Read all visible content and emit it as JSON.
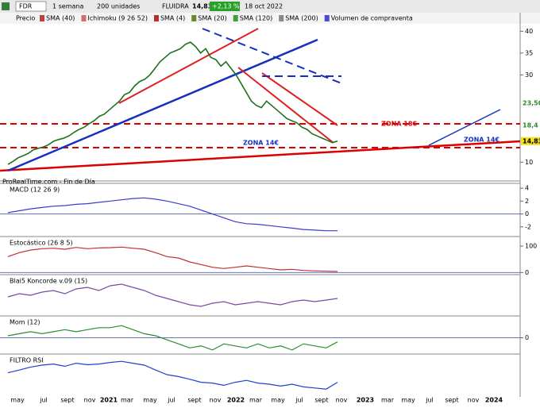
{
  "toolbar": {
    "symbol": "FDR",
    "period": "1 semana",
    "units": "200 unidades",
    "name": "FLUIDRA",
    "last": "14,83",
    "change": "+2,13 %",
    "date": "18 oct 2022"
  },
  "legend": [
    "SMA (40)",
    "Ichimoku (9 26 52)",
    "SMA (4)",
    "SMA (20)",
    "SMA (120)",
    "SMA (200)",
    "Volumen de compraventa"
  ],
  "source": "ProRealTime.com - Fin de Día",
  "x_labels": [
    "may",
    "jul",
    "sept",
    "nov",
    "2021",
    "mar",
    "may",
    "jul",
    "sept",
    "nov",
    "2022",
    "mar",
    "may",
    "jul",
    "sept",
    "nov",
    "2023",
    "mar",
    "may",
    "jul",
    "sept",
    "nov",
    "2024"
  ],
  "chart_data": [
    {
      "type": "line",
      "series": [
        {
          "name": "Precio",
          "color": "#1f6f1f",
          "values": [
            9.5,
            10.2,
            11,
            11.5,
            12,
            12.8,
            13.2,
            13.5,
            14,
            14.8,
            15.2,
            15.5,
            16,
            16.8,
            17.5,
            18,
            18.8,
            19.5,
            20.5,
            21,
            22,
            23,
            24,
            25.5,
            26,
            27.5,
            28.5,
            29,
            30,
            31.5,
            33,
            34,
            35,
            35.5,
            36,
            37,
            37.5,
            36.5,
            35,
            36,
            34,
            33.5,
            32,
            33,
            31.5,
            30,
            28,
            26,
            24,
            23,
            22.5,
            24,
            23,
            22,
            21,
            20,
            19.5,
            19,
            18,
            17.5,
            16.5,
            16,
            15.5,
            15,
            14.5,
            14.83
          ]
        }
      ],
      "ylim": [
        5.7,
        41.7
      ],
      "yticks": [
        10,
        30,
        35,
        40
      ],
      "price_tags": [
        {
          "value": 23.5,
          "label": "23,50"
        },
        {
          "value": 18.4,
          "label": "18,4"
        },
        {
          "value": 14.83,
          "label": "14,83"
        }
      ],
      "annotations": [
        "ZONA 18€",
        "ZONA 14€",
        "ZONA 14€"
      ]
    },
    {
      "type": "line",
      "title": "MACD (12 26 9)",
      "series": [
        {
          "name": "MACD",
          "color": "#3b3bd1",
          "values": [
            0.2,
            0.5,
            0.8,
            1.0,
            1.2,
            1.3,
            1.5,
            1.6,
            1.8,
            2.0,
            2.2,
            2.4,
            2.5,
            2.3,
            2.0,
            1.6,
            1.2,
            0.6,
            0.0,
            -0.6,
            -1.2,
            -1.5,
            -1.6,
            -1.8,
            -2.0,
            -2.2,
            -2.4,
            -2.5,
            -2.6,
            -2.6
          ]
        }
      ],
      "ylim": [
        -3.5,
        4.5
      ],
      "yticks": [
        4,
        2,
        0,
        -2
      ]
    },
    {
      "type": "line",
      "title": "Estocástico (26 8 5)",
      "series": [
        {
          "name": "Estocástico",
          "color": "#c03030",
          "values": [
            60,
            75,
            85,
            90,
            92,
            88,
            95,
            90,
            93,
            94,
            96,
            92,
            88,
            75,
            60,
            55,
            40,
            30,
            20,
            15,
            20,
            25,
            20,
            15,
            10,
            12,
            8,
            6,
            5,
            4
          ]
        }
      ],
      "ylim": [
        -5,
        130
      ],
      "yticks": [
        0,
        100
      ]
    },
    {
      "type": "line",
      "title": "Blai5 Koncorde v.09 (15)",
      "series": [
        {
          "name": "Koncorde",
          "color": "#7a4aa0",
          "values": [
            2,
            4,
            3,
            5,
            6,
            4,
            7,
            8,
            6,
            9,
            10,
            8,
            6,
            3,
            1,
            -1,
            -3,
            -4,
            -2,
            -1,
            -3,
            -2,
            -1,
            -2,
            -3,
            -1,
            0,
            -1,
            0,
            1
          ]
        }
      ],
      "ylim": [
        -10,
        15
      ],
      "yticks": []
    },
    {
      "type": "line",
      "title": "Mom (12)",
      "series": [
        {
          "name": "Mom",
          "color": "#2e8b2e",
          "values": [
            1,
            2,
            3,
            2,
            3,
            4,
            3,
            4,
            5,
            5,
            6,
            4,
            2,
            1,
            -1,
            -3,
            -5,
            -4,
            -6,
            -3,
            -4,
            -5,
            -3,
            -5,
            -4,
            -6,
            -3,
            -4,
            -5,
            -2
          ]
        }
      ],
      "ylim": [
        -8,
        10
      ],
      "yticks": [
        0
      ]
    },
    {
      "type": "line",
      "title": "FILTRO RSI",
      "series": [
        {
          "name": "RSI",
          "color": "#2040d0",
          "values": [
            55,
            62,
            70,
            75,
            78,
            72,
            80,
            76,
            78,
            82,
            85,
            80,
            75,
            62,
            50,
            45,
            38,
            30,
            28,
            22,
            30,
            35,
            28,
            25,
            20,
            25,
            18,
            15,
            12,
            30
          ]
        }
      ],
      "ylim": [
        0,
        100
      ],
      "yticks": []
    }
  ]
}
